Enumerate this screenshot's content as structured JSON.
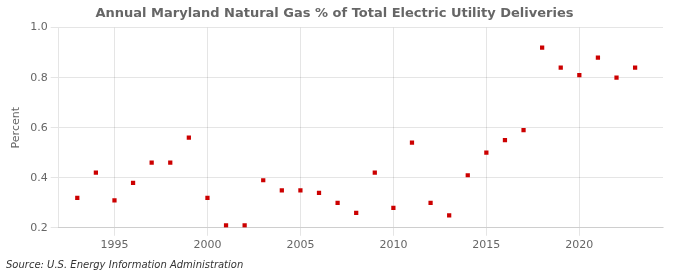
{
  "chart_data": {
    "type": "scatter",
    "title": "Annual Maryland Natural Gas % of Total Electric Utility Deliveries",
    "ylabel": "Percent",
    "annotation": "Source: U.S. Energy Information Administration",
    "x": [
      1993,
      1994,
      1995,
      1996,
      1997,
      1998,
      1999,
      2000,
      2001,
      2002,
      2003,
      2004,
      2005,
      2006,
      2007,
      2008,
      2009,
      2010,
      2011,
      2012,
      2013,
      2014,
      2015,
      2016,
      2017,
      2018,
      2019,
      2020,
      2021,
      2022,
      2023
    ],
    "values": [
      0.32,
      0.42,
      0.31,
      0.38,
      0.46,
      0.46,
      0.56,
      0.32,
      0.21,
      0.21,
      0.39,
      0.35,
      0.35,
      0.34,
      0.3,
      0.26,
      0.42,
      0.28,
      0.54,
      0.3,
      0.25,
      0.41,
      0.5,
      0.55,
      0.59,
      0.92,
      0.84,
      0.81,
      0.88,
      0.8,
      0.84
    ],
    "color": "#cc0000",
    "marker": "square",
    "xlim": [
      1992.0,
      2024.5
    ],
    "xticks": [
      1995,
      2000,
      2005,
      2010,
      2015,
      2020
    ],
    "ylim": [
      0.2,
      1.0
    ],
    "yticks": [
      0.2,
      0.4,
      0.6,
      0.8,
      {
        "value": 1.0,
        "label": "1.0"
      }
    ],
    "grid": true
  }
}
